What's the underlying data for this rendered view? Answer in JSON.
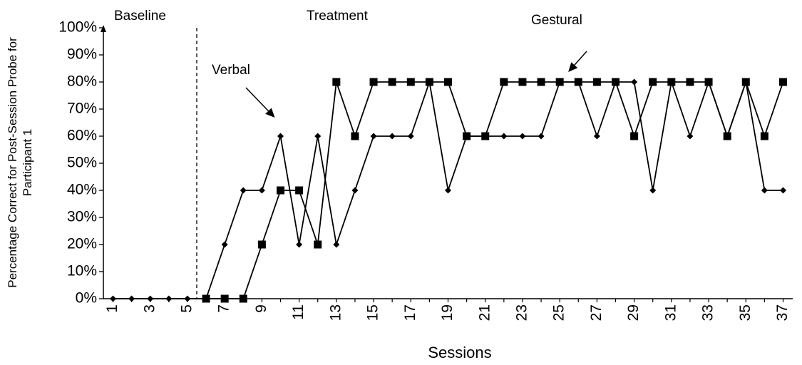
{
  "chart_data": {
    "type": "line",
    "xlabel": "Sessions",
    "ylabel_lines": [
      "Percentage Correct for Post-Session Probe for",
      "Participant 1"
    ],
    "ylim": [
      0,
      100
    ],
    "xlim": [
      1,
      37
    ],
    "y_ticks": [
      "0%",
      "10%",
      "20%",
      "30%",
      "40%",
      "50%",
      "60%",
      "70%",
      "80%",
      "90%",
      "100%"
    ],
    "x_ticks": [
      "1",
      "3",
      "5",
      "7",
      "9",
      "11",
      "13",
      "15",
      "17",
      "19",
      "21",
      "23",
      "25",
      "27",
      "29",
      "31",
      "33",
      "35",
      "37"
    ],
    "phase_line_after_session": 5.5,
    "phases": [
      "Baseline",
      "Treatment"
    ],
    "series": [
      {
        "marker": "diamond",
        "x": [
          1,
          2,
          3,
          4,
          5,
          6,
          7,
          8,
          9,
          10,
          11,
          12,
          13,
          14,
          15,
          16,
          17,
          18,
          19,
          20,
          21,
          22,
          23,
          24,
          25,
          26,
          27,
          28,
          29,
          30,
          31,
          32,
          33,
          34,
          35,
          36,
          37
        ],
        "values": [
          0,
          0,
          0,
          0,
          0,
          0,
          20,
          40,
          40,
          60,
          20,
          60,
          20,
          40,
          60,
          60,
          60,
          80,
          40,
          60,
          60,
          60,
          60,
          60,
          80,
          80,
          60,
          80,
          80,
          40,
          80,
          60,
          80,
          60,
          80,
          40,
          40
        ]
      },
      {
        "marker": "square",
        "x": [
          6,
          7,
          8,
          9,
          10,
          11,
          12,
          13,
          14,
          15,
          16,
          17,
          18,
          19,
          20,
          21,
          22,
          23,
          24,
          25,
          26,
          27,
          28,
          29,
          30,
          31,
          32,
          33,
          34,
          35,
          36,
          37
        ],
        "values": [
          0,
          0,
          0,
          20,
          40,
          40,
          20,
          80,
          60,
          80,
          80,
          80,
          80,
          80,
          60,
          60,
          80,
          80,
          80,
          80,
          80,
          80,
          80,
          60,
          80,
          80,
          80,
          80,
          60,
          80,
          60,
          80
        ]
      }
    ],
    "annotations": [
      {
        "text": "Verbal",
        "arrow_to": [
          10,
          60
        ]
      },
      {
        "text": "Gestural",
        "arrow_to": [
          25,
          80
        ]
      }
    ]
  }
}
